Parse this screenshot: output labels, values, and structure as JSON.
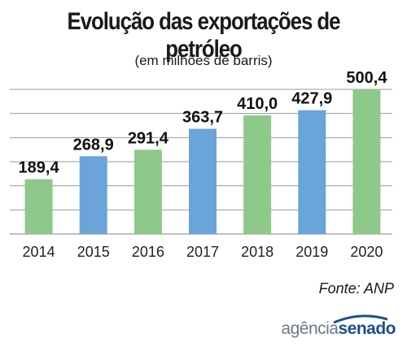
{
  "chart_data": {
    "type": "bar",
    "title": "Evolução das exportações de petróleo",
    "subtitle": "(em milhões de barris)",
    "categories": [
      "2014",
      "2015",
      "2016",
      "2017",
      "2018",
      "2019",
      "2020"
    ],
    "values": [
      189.4,
      268.9,
      291.4,
      363.7,
      410.0,
      427.9,
      500.4
    ],
    "value_labels": [
      "189,4",
      "268,9",
      "291,4",
      "363,7",
      "410,0",
      "427,9",
      "500,4"
    ],
    "bar_colors": [
      "#8ec88a",
      "#6aa4d8",
      "#8ec88a",
      "#6aa4d8",
      "#8ec88a",
      "#6aa4d8",
      "#8ec88a"
    ],
    "ylim": [
      0,
      500
    ],
    "grid": true,
    "source": "Fonte: ANP"
  },
  "brand": {
    "light": "agência",
    "bold": "senado"
  },
  "colors": {
    "green": "#8ec88a",
    "blue": "#6aa4d8",
    "grid": "#9a9a9a",
    "brand_blue": "#1d4f8a"
  }
}
